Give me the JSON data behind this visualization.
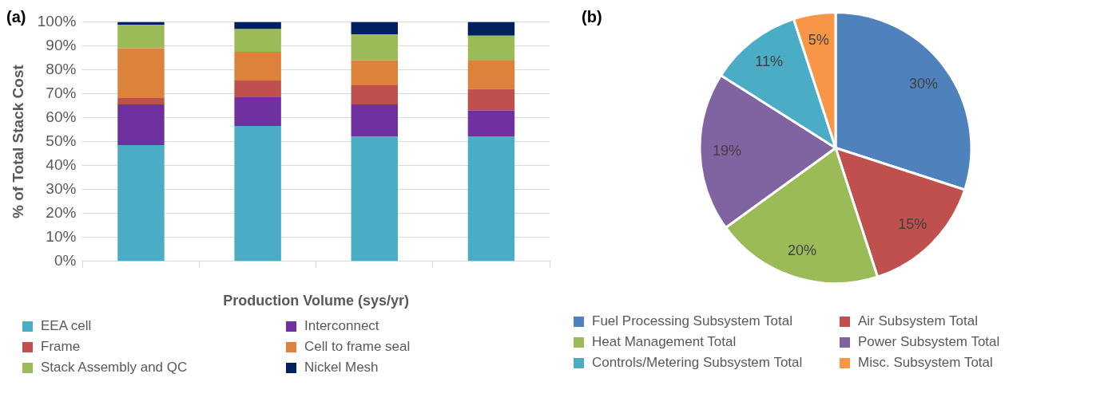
{
  "chart_data": [
    {
      "type": "bar",
      "title": "(a)",
      "xlabel": "Production Volume (sys/yr)",
      "ylabel": "% of Total Stack Cost",
      "categories": [
        null,
        null,
        null,
        null
      ],
      "stacked": true,
      "ylim": [
        0,
        100
      ],
      "yticks": [
        {
          "value": 0,
          "label": "0%"
        },
        {
          "value": 10,
          "label": "10%"
        },
        {
          "value": 20,
          "label": "20%"
        },
        {
          "value": 30,
          "label": "30%"
        },
        {
          "value": 40,
          "label": "40%"
        },
        {
          "value": 50,
          "label": "50%"
        },
        {
          "value": 60,
          "label": "60%"
        },
        {
          "value": 70,
          "label": "70%"
        },
        {
          "value": 80,
          "label": "80%"
        },
        {
          "value": 90,
          "label": "90%"
        },
        {
          "value": 100,
          "label": "100%"
        }
      ],
      "grid": "y",
      "legend": "bottom",
      "series": [
        {
          "name": "EEA cell",
          "color": "#4bacc6",
          "values": [
            48.5,
            56.5,
            52,
            52.2
          ]
        },
        {
          "name": "Interconnect",
          "color": "#7030a0",
          "values": [
            17,
            12,
            13.5,
            10.8
          ]
        },
        {
          "name": "Frame",
          "color": "#c0504d",
          "values": [
            2.7,
            7,
            8,
            9
          ]
        },
        {
          "name": "Cell to frame seal",
          "color": "#dd823b",
          "values": [
            20.8,
            12,
            10.5,
            11.8
          ]
        },
        {
          "name": "Stack Assembly and QC",
          "color": "#9bbb59",
          "values": [
            9.7,
            9.5,
            10.7,
            10.4
          ]
        },
        {
          "name": "Nickel Mesh",
          "color": "#002060",
          "values": [
            1.3,
            3,
            5.3,
            5.8
          ]
        }
      ]
    },
    {
      "type": "pie",
      "title": "(b)",
      "categories": [
        "Fuel Processing Subsystem Total",
        "Air Subsystem Total",
        "Heat Management Total",
        "Power Subsystem Total",
        "Controls/Metering Subsystem Total",
        "Misc. Subsystem Total"
      ],
      "values": [
        30,
        15,
        20,
        19,
        11,
        5
      ],
      "value_labels": [
        "30%",
        "15%",
        "20%",
        "19%",
        "11%",
        "5%"
      ],
      "colors": [
        "#4f81bd",
        "#c0504d",
        "#9bbb59",
        "#8064a2",
        "#4bacc6",
        "#f79646"
      ],
      "legend": "bottom"
    }
  ]
}
